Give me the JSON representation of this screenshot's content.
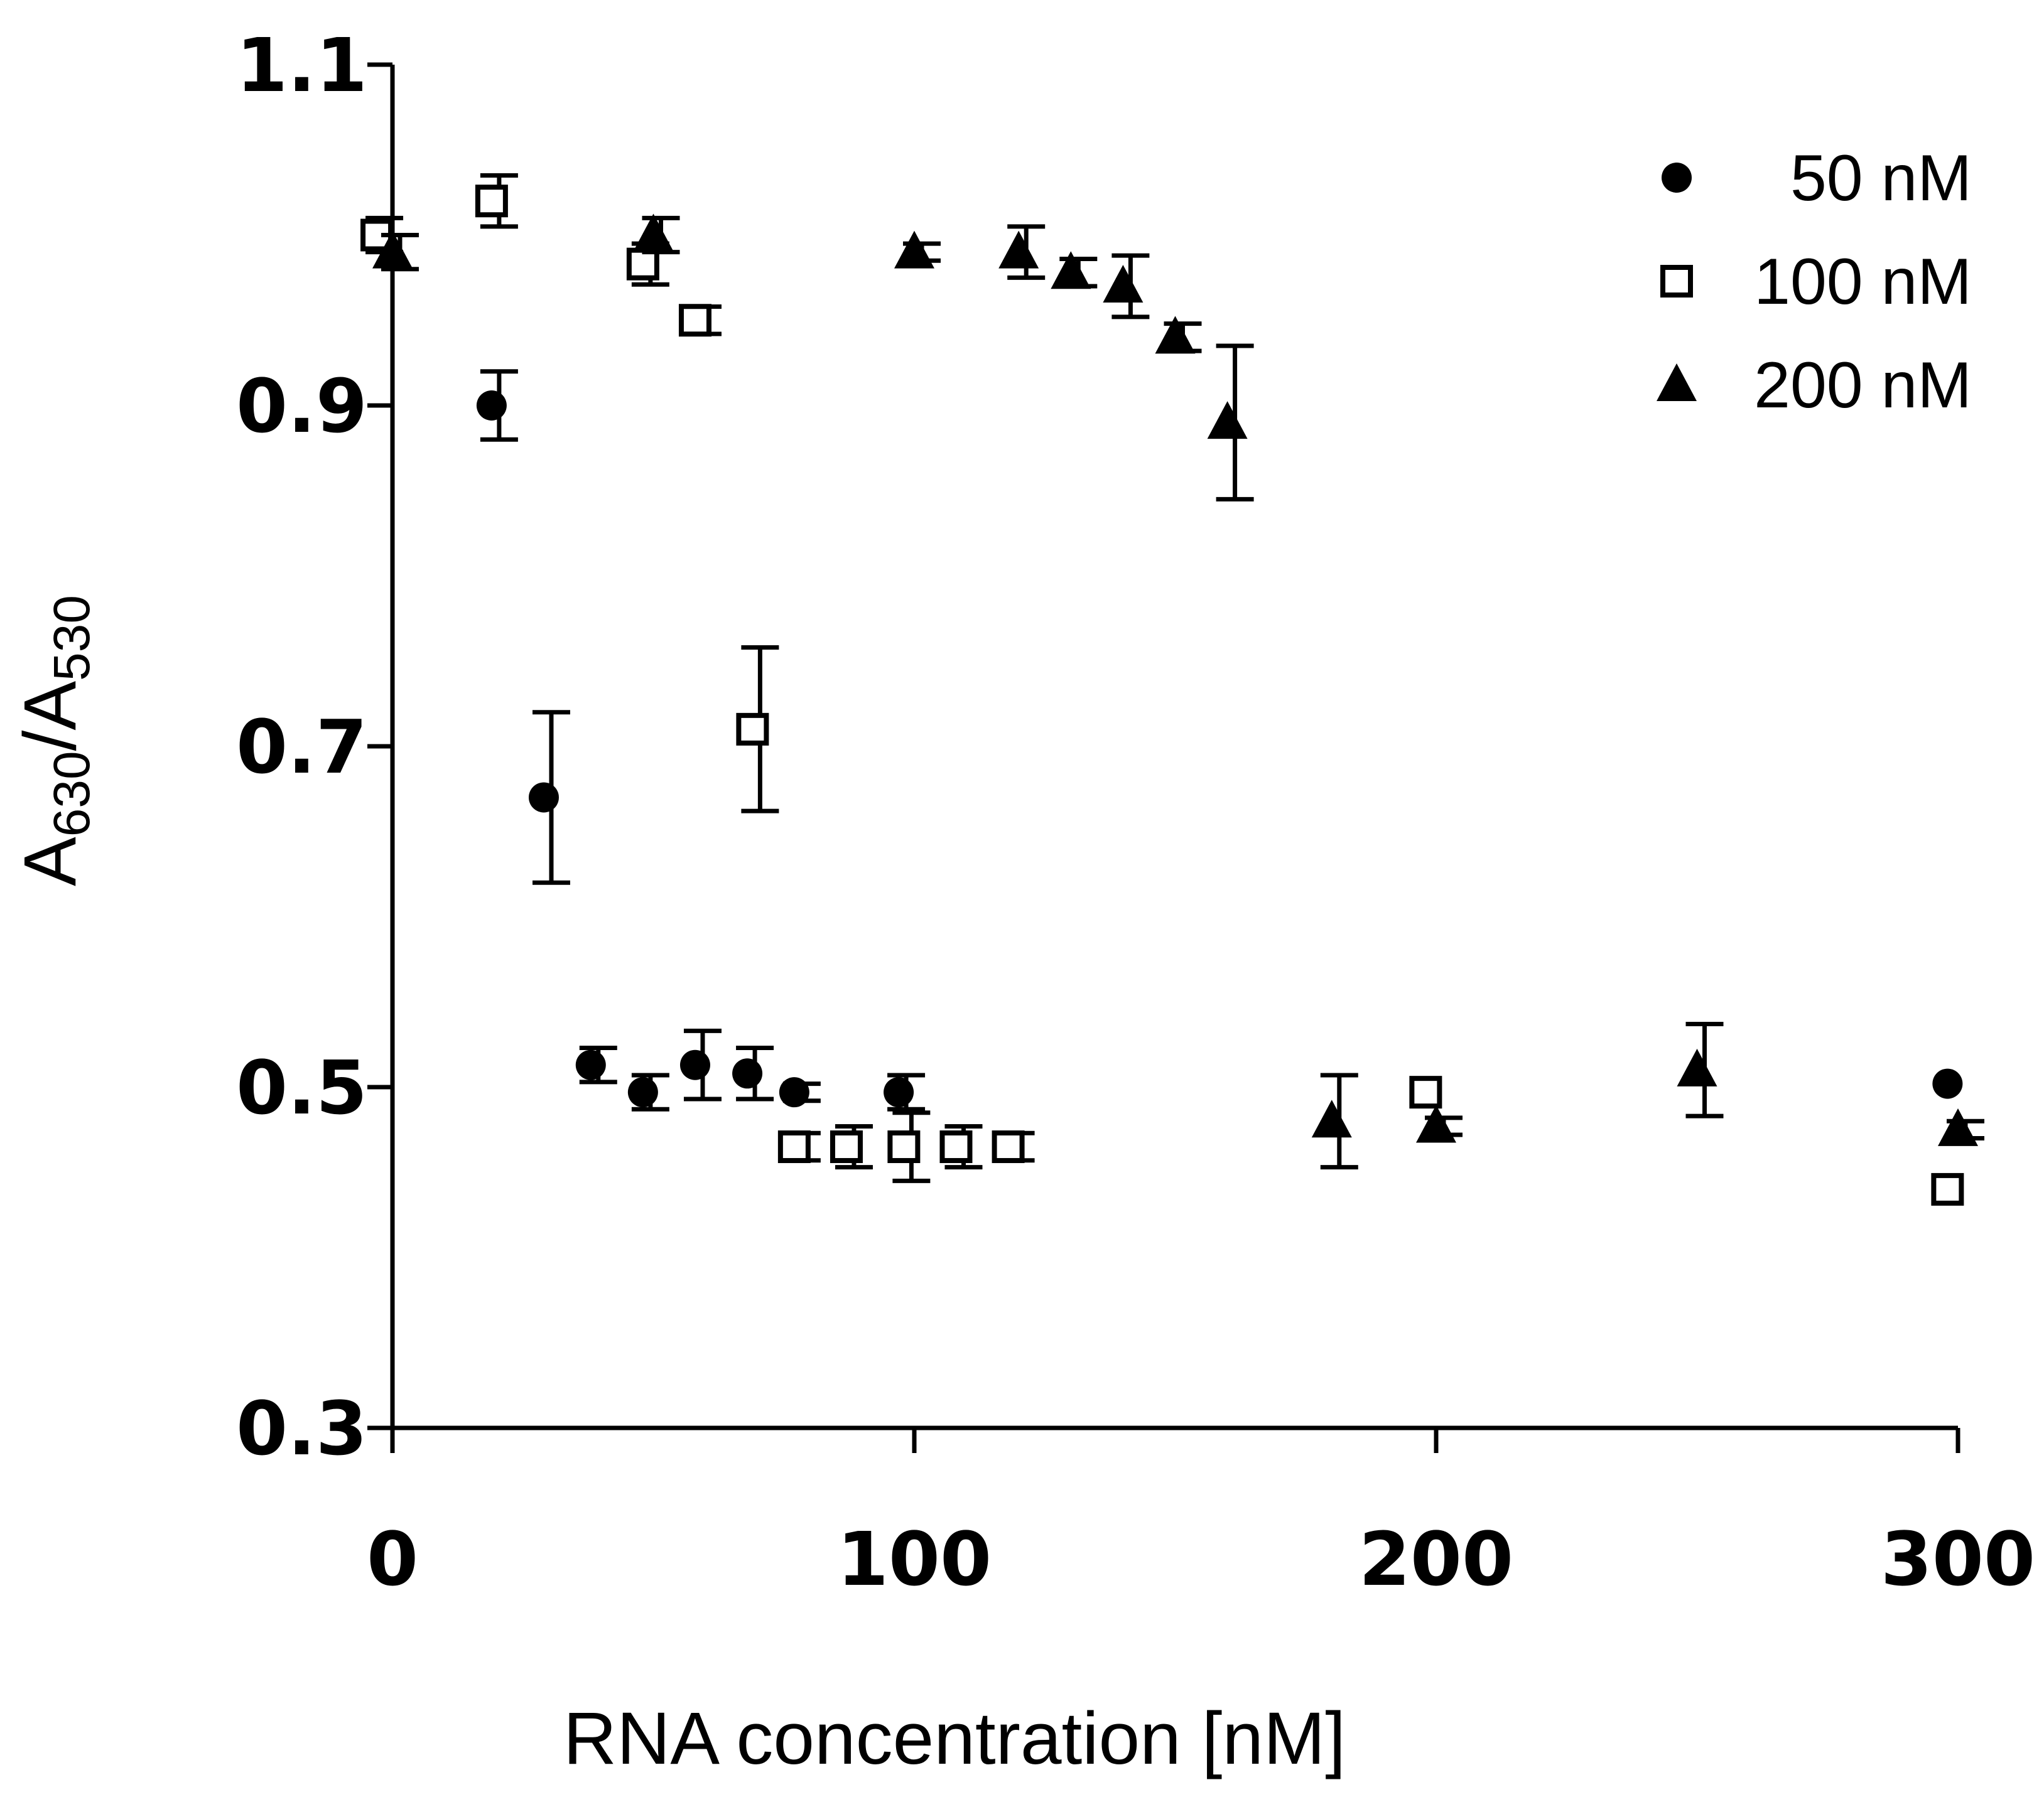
{
  "chart_data": {
    "type": "scatter",
    "title": "",
    "xlabel": "RNA concentration [nM]",
    "ylabel": {
      "base": "A",
      "sub1": "630",
      "sep": "/A",
      "sub2": "530"
    },
    "xlim": [
      0,
      300
    ],
    "ylim": [
      0.3,
      1.1
    ],
    "xticks": [
      0,
      100,
      200,
      300
    ],
    "xtick_labels": [
      "0",
      "100",
      "200",
      "300"
    ],
    "yticks": [
      0.3,
      0.5,
      0.7,
      0.9,
      1.1
    ],
    "ytick_labels": [
      "0.3",
      "0.5",
      "0.7",
      "0.9",
      "1.1"
    ],
    "grid": false,
    "legend_position": "top-right",
    "series": [
      {
        "name": "50 nM",
        "marker": "filled-circle",
        "points": [
          {
            "x": 19,
            "y": 0.9,
            "err": 0.02
          },
          {
            "x": 29,
            "y": 0.67,
            "err": 0.05
          },
          {
            "x": 38,
            "y": 0.513,
            "err": 0.01
          },
          {
            "x": 48,
            "y": 0.497,
            "err": 0.01
          },
          {
            "x": 58,
            "y": 0.513,
            "err": 0.02
          },
          {
            "x": 68,
            "y": 0.508,
            "err": 0.015
          },
          {
            "x": 77,
            "y": 0.497,
            "err": 0.005
          },
          {
            "x": 97,
            "y": 0.497,
            "err": 0.01
          },
          {
            "x": 298,
            "y": 0.502,
            "err": 0
          }
        ]
      },
      {
        "name": "100 nM",
        "marker": "open-square",
        "points": [
          {
            "x": -3,
            "y": 1.0,
            "err": 0.01
          },
          {
            "x": 19,
            "y": 1.02,
            "err": 0.015
          },
          {
            "x": 48,
            "y": 0.983,
            "err": 0.012
          },
          {
            "x": 58,
            "y": 0.95,
            "err": 0.008
          },
          {
            "x": 69,
            "y": 0.71,
            "err": 0.048
          },
          {
            "x": 77,
            "y": 0.465,
            "err": 0.008
          },
          {
            "x": 87,
            "y": 0.465,
            "err": 0.012
          },
          {
            "x": 98,
            "y": 0.465,
            "err": 0.02
          },
          {
            "x": 108,
            "y": 0.465,
            "err": 0.012
          },
          {
            "x": 118,
            "y": 0.465,
            "err": 0.008
          },
          {
            "x": 198,
            "y": 0.497,
            "err": 0
          },
          {
            "x": 298,
            "y": 0.44,
            "err": 0
          }
        ]
      },
      {
        "name": "200 nM",
        "marker": "filled-triangle",
        "points": [
          {
            "x": 0,
            "y": 0.99,
            "err": 0.01
          },
          {
            "x": 50,
            "y": 1.0,
            "err": 0.01
          },
          {
            "x": 100,
            "y": 0.99,
            "err": 0.005
          },
          {
            "x": 120,
            "y": 0.99,
            "err": 0.015
          },
          {
            "x": 130,
            "y": 0.978,
            "err": 0.008
          },
          {
            "x": 140,
            "y": 0.97,
            "err": 0.018
          },
          {
            "x": 150,
            "y": 0.94,
            "err": 0.008
          },
          {
            "x": 160,
            "y": 0.89,
            "err": 0.045
          },
          {
            "x": 180,
            "y": 0.48,
            "err": 0.027
          },
          {
            "x": 200,
            "y": 0.477,
            "err": 0.005
          },
          {
            "x": 250,
            "y": 0.51,
            "err": 0.027
          },
          {
            "x": 300,
            "y": 0.475,
            "err": 0.005
          }
        ]
      }
    ]
  }
}
